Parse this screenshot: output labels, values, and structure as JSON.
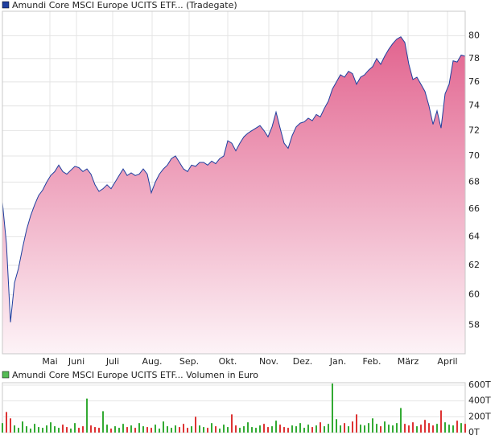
{
  "chart_data": [
    {
      "type": "area",
      "title": "Amundi Core MSCI Europe UCITS ETF... (Tradegate)",
      "color": "#1f3f9f",
      "fill_top": "#e2648f",
      "fill_bottom": "#fdf3f7",
      "log_scale": true,
      "grid": true,
      "x": [
        0,
        1,
        2,
        3,
        4,
        5,
        6,
        7,
        8,
        9,
        10,
        11,
        12,
        13,
        14,
        15,
        16,
        17,
        18,
        19,
        20,
        21,
        22,
        23,
        24,
        25,
        26,
        27,
        28,
        29,
        30,
        31,
        32,
        33,
        34,
        35,
        36,
        37,
        38,
        39,
        40,
        41,
        42,
        43,
        44,
        45,
        46,
        47,
        48,
        49,
        50,
        51,
        52,
        53,
        54,
        55,
        56,
        57,
        58,
        59,
        60,
        61,
        62,
        63,
        64,
        65,
        66,
        67,
        68,
        69,
        70,
        71,
        72,
        73,
        74,
        75,
        76,
        77,
        78,
        79,
        80,
        81,
        82,
        83,
        84,
        85,
        86,
        87,
        88,
        89,
        90,
        91,
        92,
        93,
        94,
        95,
        96,
        97,
        98,
        99,
        100,
        101,
        102,
        103,
        104,
        105,
        106,
        107,
        108,
        109,
        110,
        111,
        112,
        113,
        114,
        115
      ],
      "values": [
        66.5,
        63.5,
        58.2,
        60.8,
        61.8,
        63.2,
        64.5,
        65.5,
        66.3,
        67,
        67.4,
        68,
        68.5,
        68.8,
        69.3,
        68.8,
        68.6,
        68.9,
        69.2,
        69.1,
        68.8,
        69,
        68.6,
        67.8,
        67.3,
        67.5,
        67.8,
        67.5,
        68,
        68.5,
        69,
        68.5,
        68.7,
        68.5,
        68.6,
        69,
        68.6,
        67.2,
        68,
        68.6,
        69,
        69.3,
        69.8,
        70,
        69.5,
        69,
        68.8,
        69.3,
        69.2,
        69.5,
        69.5,
        69.3,
        69.6,
        69.4,
        69.8,
        70,
        71.2,
        71,
        70.4,
        71,
        71.5,
        71.8,
        72,
        72.2,
        72.4,
        72,
        71.5,
        72.3,
        73.5,
        72.2,
        71,
        70.6,
        71.6,
        72.3,
        72.6,
        72.7,
        73,
        72.8,
        73.3,
        73.1,
        73.8,
        74.4,
        75.4,
        76,
        76.6,
        76.4,
        76.9,
        76.7,
        75.8,
        76.4,
        76.6,
        77,
        77.3,
        78,
        77.5,
        78.2,
        78.8,
        79.3,
        79.7,
        79.9,
        79.4,
        77.5,
        76.2,
        76.4,
        75.8,
        75.2,
        74,
        72.5,
        73.6,
        72.2,
        75,
        75.8,
        77.8,
        77.7,
        78.3,
        78.2
      ],
      "xlim": [
        0,
        115
      ],
      "xticks": [
        {
          "value": 11.8,
          "label": "Mai"
        },
        {
          "value": 18.4,
          "label": "Juni"
        },
        {
          "value": 27.4,
          "label": "Juli"
        },
        {
          "value": 37.2,
          "label": "Aug."
        },
        {
          "value": 46.4,
          "label": "Sep."
        },
        {
          "value": 56,
          "label": "Okt."
        },
        {
          "value": 66.2,
          "label": "Nov."
        },
        {
          "value": 74.6,
          "label": "Dez."
        },
        {
          "value": 83.4,
          "label": "Jan."
        },
        {
          "value": 91.8,
          "label": "Feb."
        },
        {
          "value": 100.8,
          "label": "März"
        },
        {
          "value": 110.6,
          "label": "April"
        }
      ],
      "ylim": [
        56.2,
        82.2
      ],
      "yticks": [
        58,
        60,
        62,
        64,
        66,
        68,
        70,
        72,
        74,
        76,
        78,
        80
      ]
    },
    {
      "type": "bar",
      "title": "Amundi Core MSCI Europe UCITS ETF... Volumen in Euro",
      "color": "#55bb55",
      "up_color": "#33aa33",
      "down_color": "#dd3333",
      "x": [
        0,
        1,
        2,
        3,
        4,
        5,
        6,
        7,
        8,
        9,
        10,
        11,
        12,
        13,
        14,
        15,
        16,
        17,
        18,
        19,
        20,
        21,
        22,
        23,
        24,
        25,
        26,
        27,
        28,
        29,
        30,
        31,
        32,
        33,
        34,
        35,
        36,
        37,
        38,
        39,
        40,
        41,
        42,
        43,
        44,
        45,
        46,
        47,
        48,
        49,
        50,
        51,
        52,
        53,
        54,
        55,
        56,
        57,
        58,
        59,
        60,
        61,
        62,
        63,
        64,
        65,
        66,
        67,
        68,
        69,
        70,
        71,
        72,
        73,
        74,
        75,
        76,
        77,
        78,
        79,
        80,
        81,
        82,
        83,
        84,
        85,
        86,
        87,
        88,
        89,
        90,
        91,
        92,
        93,
        94,
        95,
        96,
        97,
        98,
        99,
        100,
        101,
        102,
        103,
        104,
        105,
        106,
        107,
        108,
        109,
        110,
        111,
        112,
        113,
        114,
        115
      ],
      "values": [
        120000,
        260000,
        180000,
        90000,
        60000,
        140000,
        80000,
        50000,
        110000,
        70000,
        60000,
        90000,
        130000,
        80000,
        60000,
        100000,
        70000,
        50000,
        120000,
        60000,
        80000,
        430000,
        90000,
        70000,
        60000,
        270000,
        100000,
        50000,
        80000,
        60000,
        110000,
        70000,
        90000,
        60000,
        120000,
        80000,
        70000,
        60000,
        100000,
        50000,
        140000,
        80000,
        60000,
        90000,
        70000,
        110000,
        60000,
        80000,
        200000,
        90000,
        70000,
        60000,
        120000,
        80000,
        50000,
        100000,
        70000,
        230000,
        90000,
        60000,
        80000,
        130000,
        70000,
        60000,
        90000,
        110000,
        70000,
        80000,
        150000,
        100000,
        70000,
        60000,
        90000,
        80000,
        120000,
        60000,
        100000,
        70000,
        90000,
        130000,
        80000,
        110000,
        620000,
        170000,
        90000,
        120000,
        80000,
        140000,
        230000,
        100000,
        90000,
        120000,
        180000,
        110000,
        80000,
        140000,
        100000,
        90000,
        120000,
        310000,
        110000,
        90000,
        130000,
        80000,
        100000,
        160000,
        120000,
        90000,
        110000,
        280000,
        130000,
        100000,
        90000,
        150000,
        120000,
        110000
      ],
      "xlim": [
        0,
        115
      ],
      "ylim": [
        0,
        630000
      ],
      "yticks": [
        {
          "value": 0,
          "label": "0T"
        },
        {
          "value": 200000,
          "label": "200T"
        },
        {
          "value": 400000,
          "label": "400T"
        },
        {
          "value": 600000,
          "label": "600T"
        }
      ]
    }
  ]
}
